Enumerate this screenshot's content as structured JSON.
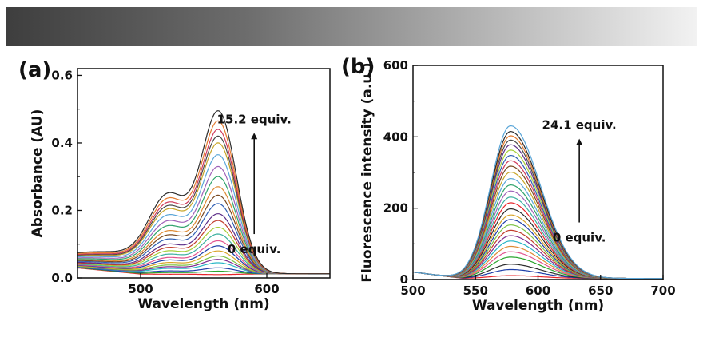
{
  "chart_data": [
    {
      "panel": "(a)",
      "type": "line",
      "xlabel": "Wavelength (nm)",
      "ylabel": "Absorbance (AU)",
      "xlim": [
        450,
        650
      ],
      "ylim": [
        0,
        0.62
      ],
      "x_ticks": [
        {
          "v": 500,
          "label": "500"
        },
        {
          "v": 600,
          "label": "600"
        }
      ],
      "y_ticks": [
        {
          "v": 0,
          "label": "0.0"
        },
        {
          "v": 0.2,
          "label": "0.2"
        },
        {
          "v": 0.4,
          "label": "0.4"
        },
        {
          "v": 0.6,
          "label": "0.6"
        }
      ],
      "annotation_top": "15.2 equiv.",
      "annotation_bottom": "0 equiv.",
      "annotation_arrow_from": 0.13,
      "annotation_arrow_to": 0.43,
      "annotation_x": 590,
      "peak_nm": 562,
      "series_peak_values": [
        0.01,
        0.02,
        0.03,
        0.045,
        0.055,
        0.065,
        0.08,
        0.095,
        0.11,
        0.13,
        0.15,
        0.17,
        0.19,
        0.22,
        0.245,
        0.27,
        0.3,
        0.33,
        0.365,
        0.4,
        0.42,
        0.44,
        0.465,
        0.495
      ],
      "series_colors": [
        "#e8242a",
        "#2ba52d",
        "#1f3ea8",
        "#29b7c6",
        "#7f2d8f",
        "#7cc242",
        "#d9a52a",
        "#1f3ea8",
        "#e2548f",
        "#3cb0a0",
        "#a7cf3a",
        "#c23d2d",
        "#5c2d88",
        "#2f5fb3",
        "#7b4a22",
        "#de8a33",
        "#2fa36b",
        "#9f62b8",
        "#5aa6d8",
        "#c8a629",
        "#4a4a4a",
        "#d03b5c",
        "#e47b2e",
        "#2b2b2b"
      ]
    },
    {
      "panel": "(b)",
      "type": "line",
      "xlabel": "Wavelength (nm)",
      "ylabel": "Fluorescence intensity (a.u.)",
      "xlim": [
        500,
        700
      ],
      "ylim": [
        0,
        600
      ],
      "x_ticks": [
        {
          "v": 500,
          "label": "500"
        },
        {
          "v": 550,
          "label": "550"
        },
        {
          "v": 600,
          "label": "600"
        },
        {
          "v": 650,
          "label": "650"
        },
        {
          "v": 700,
          "label": "700"
        }
      ],
      "y_ticks": [
        {
          "v": 0,
          "label": "0"
        },
        {
          "v": 200,
          "label": "200"
        },
        {
          "v": 400,
          "label": "400"
        },
        {
          "v": 600,
          "label": "600"
        }
      ],
      "annotation_top": "24.1 equiv.",
      "annotation_bottom": "0 equiv.",
      "annotation_arrow_from": 160,
      "annotation_arrow_to": 395,
      "annotation_x": 633,
      "peak_nm": 578,
      "series_peak_values": [
        8,
        25,
        40,
        60,
        75,
        90,
        105,
        120,
        135,
        150,
        165,
        178,
        195,
        212,
        228,
        245,
        262,
        280,
        298,
        315,
        330,
        345,
        360,
        375,
        388,
        400,
        412,
        428
      ],
      "series_colors": [
        "#e8242a",
        "#1f3ea8",
        "#2b2b2b",
        "#2ba52d",
        "#e2548f",
        "#de8a33",
        "#29b7c6",
        "#7f2d8f",
        "#c23d2d",
        "#7cc242",
        "#1f3ea8",
        "#d9a52a",
        "#2b2b2b",
        "#e8242a",
        "#3cb0a0",
        "#9f62b8",
        "#2fa36b",
        "#5aa6d8",
        "#c8a629",
        "#7b4a22",
        "#d03b5c",
        "#2f5fb3",
        "#a7cf3a",
        "#5c2d88",
        "#4a4a4a",
        "#e47b2e",
        "#2b2b2b",
        "#5aa6d8"
      ]
    }
  ]
}
